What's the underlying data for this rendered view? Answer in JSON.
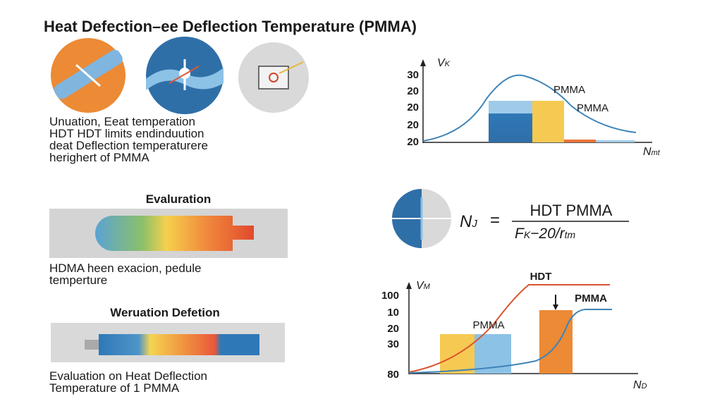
{
  "title": "Heat Defection–ee Deflection Temperature (PMMA)",
  "intro": {
    "lines": [
      "Unuation, Eeat temperation",
      "HDT HDT limits endinduution",
      "deat Deflection temperaturere",
      "herighert of PMMA"
    ]
  },
  "section1": {
    "heading": "Evaluration",
    "lines": [
      "HDMA heen exacion, pedule",
      "temperture"
    ]
  },
  "section2": {
    "heading": "Weruation Defetion",
    "lines": [
      "Evaluation on Heat Deflection",
      "Temperature of 1 PMMA"
    ]
  },
  "chart_top": {
    "y_label": "V",
    "y_label_sub": "K",
    "x_label": "N",
    "x_label_sub": "mt",
    "tick_labels": [
      "30",
      "20",
      "20",
      "20",
      "20"
    ],
    "annotations": [
      "PMMA",
      "PMMA"
    ]
  },
  "formula": {
    "lhs": "N",
    "lhs_sub": "J",
    "equals": "=",
    "numerator": "HDT PMMA",
    "denominator": "F",
    "denominator_sub": "K",
    "denominator_rest": "−20/r",
    "denominator_sub2": "tm"
  },
  "chart_bottom": {
    "y_label": "V",
    "y_label_sub": "M",
    "x_label": "N",
    "x_label_sub": "D",
    "tick_labels": [
      "100",
      "10",
      "20",
      "30",
      "80"
    ],
    "annotations": [
      "HDT",
      "PMMA",
      "PMMA"
    ]
  }
}
